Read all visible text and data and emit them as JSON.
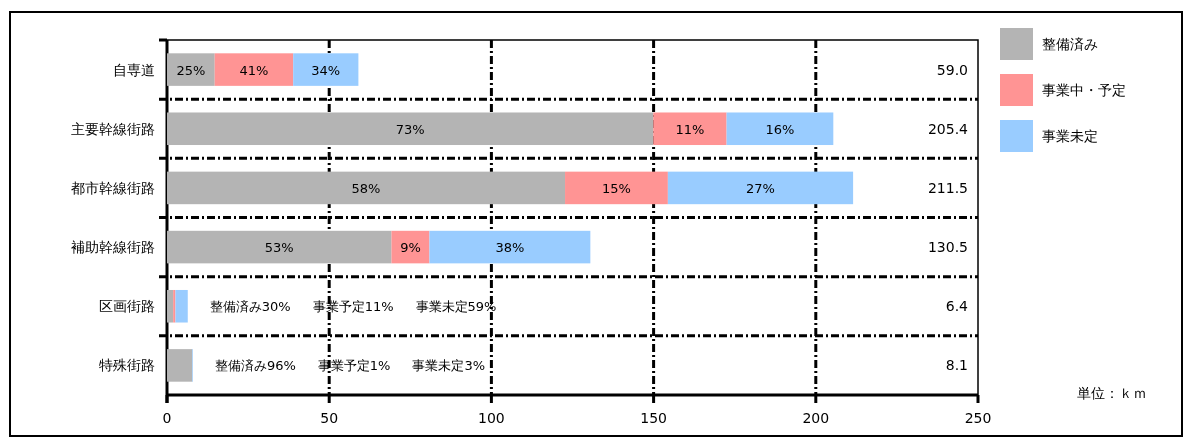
{
  "chart_data": {
    "type": "bar",
    "orientation": "horizontal",
    "stacked": true,
    "categories": [
      "自専道",
      "主要幹線街路",
      "都市幹線街路",
      "補助幹線街路",
      "区画街路",
      "特殊街路"
    ],
    "series": [
      {
        "name": "整備済み",
        "color": "#b4b4b4",
        "values": [
          14.7,
          149.9,
          122.7,
          69.2,
          1.9,
          7.8
        ]
      },
      {
        "name": "事業中・予定",
        "color": "#ff9494",
        "values": [
          24.2,
          22.6,
          31.7,
          11.7,
          0.7,
          null
        ]
      },
      {
        "name": "事業未定",
        "color": "#99ccff",
        "values": [
          20.1,
          32.9,
          57.1,
          49.6,
          3.8,
          0.2
        ]
      }
    ],
    "xlim": [
      0,
      250
    ],
    "xticks": [
      0,
      50,
      100,
      150,
      200,
      250
    ],
    "grid": true,
    "legend": "right",
    "annotations": [
      "25%",
      "41%",
      "34%",
      "73%",
      "11%",
      "16%",
      "58%",
      "15%",
      "27%",
      "53%",
      "9%",
      "38%",
      "整備済み30%",
      "事業予定11%",
      "事業未定59%",
      "整備済み96%",
      "事業予定1%",
      "事業未定3%",
      "59.0",
      "205.4",
      "211.5",
      "130.5",
      "6.4",
      "8.1",
      "単位：ｋｍ"
    ]
  }
}
